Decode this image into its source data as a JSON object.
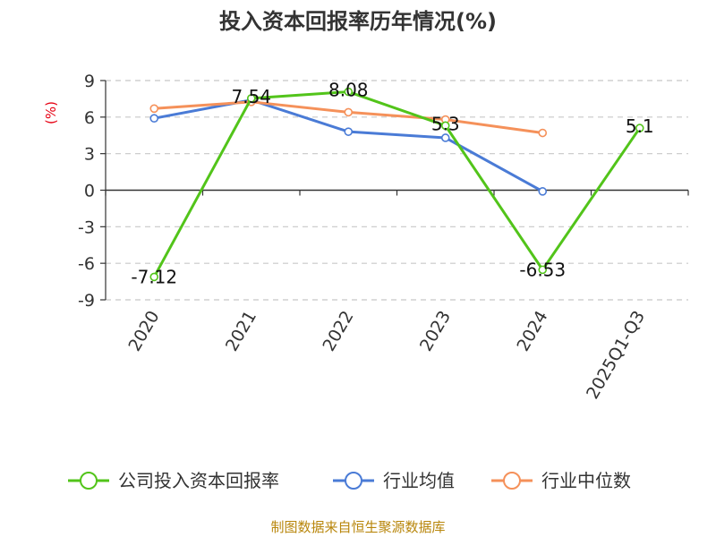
{
  "chart_data": {
    "type": "line",
    "title": "投入资本回报率历年情况(%)",
    "unit_label": "(%)",
    "categories": [
      "2020",
      "2021",
      "2022",
      "2023",
      "2024",
      "2025Q1-Q3"
    ],
    "ylim": [
      -9,
      9
    ],
    "yticks": [
      9,
      6,
      3,
      0,
      -3,
      -6,
      -9
    ],
    "grid": true,
    "legend_position": "bottom",
    "series": [
      {
        "name": "公司投入资本回报率",
        "color": "#52c41a",
        "values": [
          -7.12,
          7.54,
          8.08,
          5.3,
          -6.53,
          5.1
        ],
        "labels": [
          "-7.12",
          "7.54",
          "8.08",
          "5.3",
          "-6.53",
          "5.1"
        ]
      },
      {
        "name": "行业均值",
        "color": "#4a7bd6",
        "values": [
          5.9,
          7.4,
          4.8,
          4.3,
          -0.1,
          null
        ]
      },
      {
        "name": "行业中位数",
        "color": "#f5915a",
        "values": [
          6.7,
          7.25,
          6.4,
          5.8,
          4.7,
          null
        ]
      }
    ],
    "source": "制图数据来自恒生聚源数据库"
  }
}
